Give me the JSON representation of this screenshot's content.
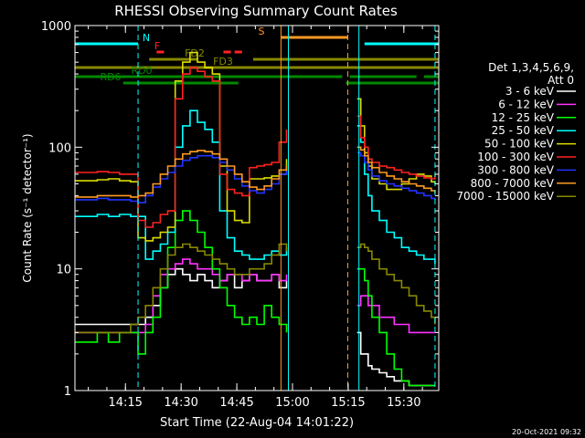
{
  "chart_data": {
    "type": "line",
    "title": "RHESSI Observing Summary Count Rates",
    "xlabel": "Start Time (22-Aug-04 14:01:22)",
    "ylabel": "Count Rate (s⁻¹ detector⁻¹)",
    "yscale": "log",
    "ylim": [
      1,
      1000
    ],
    "xlim_minutes": [
      0,
      98
    ],
    "x_unit": "minutes after 14:01:22",
    "x_ticks": [
      {
        "label": "14:15",
        "value": 13.6
      },
      {
        "label": "14:30",
        "value": 28.6
      },
      {
        "label": "14:45",
        "value": 43.6
      },
      {
        "label": "15:00",
        "value": 58.6
      },
      {
        "label": "15:15",
        "value": 73.6
      },
      {
        "label": "15:30",
        "value": 88.6
      }
    ],
    "y_ticks": [
      {
        "label": "1",
        "value": 1
      },
      {
        "label": "10",
        "value": 10
      },
      {
        "label": "100",
        "value": 100
      },
      {
        "label": "1000",
        "value": 1000
      }
    ],
    "legend": {
      "placement": "right",
      "header": [
        "Det 1,3,4,5,6,9,",
        "Att 0"
      ],
      "entries": [
        {
          "label": "3 - 6 keV",
          "color": "#ffffff"
        },
        {
          "label": "6 - 12 keV",
          "color": "#ff33ff"
        },
        {
          "label": "12 - 25 keV",
          "color": "#00ff00"
        },
        {
          "label": "25 - 50 keV",
          "color": "#00ffff"
        },
        {
          "label": "50 - 100 keV",
          "color": "#dddd00"
        },
        {
          "label": "100 - 300 keV",
          "color": "#ff2222"
        },
        {
          "label": "300 - 800 keV",
          "color": "#2233ff"
        },
        {
          "label": "800 - 7000 keV",
          "color": "#ff9922"
        },
        {
          "label": "7000 - 15000 keV",
          "color": "#888800"
        }
      ]
    },
    "flag_bars": [
      {
        "label": "N",
        "color": "#00ffff",
        "segments": [
          [
            0,
            17
          ],
          [
            78,
            98
          ]
        ]
      },
      {
        "label": "F",
        "color": "#ff2222",
        "segments": [
          [
            22,
            24
          ],
          [
            40,
            42
          ],
          [
            43,
            45
          ]
        ]
      },
      {
        "label": "S",
        "color": "#ff9922",
        "segments": [
          [
            55.5,
            73.5
          ]
        ]
      },
      {
        "label": "FD2",
        "color": "#888800",
        "segments": [
          [
            20,
            33
          ],
          [
            48,
            98
          ]
        ]
      },
      {
        "label": "FD3",
        "color": "#888800",
        "segments": [
          [
            0,
            98
          ]
        ]
      },
      {
        "label": "RD0",
        "color": "#008800",
        "segments": [
          [
            0,
            72
          ],
          [
            74,
            92
          ],
          [
            94,
            98
          ]
        ]
      },
      {
        "label": "RD6",
        "color": "#008800",
        "segments": [
          [
            13,
            44
          ],
          [
            73,
            98
          ]
        ]
      }
    ],
    "vertical_lines": [
      {
        "x": 17,
        "color": "#00ffff",
        "dash": true
      },
      {
        "x": 55.5,
        "color": "#ff9922",
        "dash": false
      },
      {
        "x": 57.5,
        "color": "#00ffff",
        "dash": false
      },
      {
        "x": 73.5,
        "color": "#ff9922",
        "dash": true
      },
      {
        "x": 76.5,
        "color": "#00ffff",
        "dash": false
      },
      {
        "x": 97,
        "color": "#00ffff",
        "dash": true
      }
    ],
    "data_gap": [
      58,
      76
    ],
    "series": [
      {
        "name": "3 - 6 keV",
        "color": "#ffffff",
        "x": [
          0,
          3,
          6,
          9,
          12,
          15,
          17,
          19,
          21,
          23,
          25,
          27,
          29,
          31,
          33,
          35,
          37,
          39,
          41,
          43,
          45,
          47,
          49,
          51,
          53,
          55,
          57,
          76,
          77,
          78,
          79,
          80,
          82,
          84,
          86,
          88,
          90,
          92,
          94,
          96,
          97
        ],
        "y": [
          3.5,
          3.5,
          3.5,
          3.5,
          3.5,
          3.5,
          3.5,
          4,
          5,
          7,
          9,
          10,
          9,
          8,
          9,
          8,
          7,
          8,
          9,
          7,
          8,
          9,
          8,
          8,
          9,
          7,
          8,
          3,
          2,
          2,
          1.6,
          1.5,
          1.4,
          1.3,
          1.2,
          1.2,
          1.1,
          1.1,
          1.1,
          1.1,
          1.1
        ]
      },
      {
        "name": "6 - 12 keV",
        "color": "#ff33ff",
        "x": [
          0,
          3,
          6,
          9,
          12,
          15,
          17,
          19,
          21,
          23,
          25,
          27,
          29,
          31,
          33,
          35,
          37,
          39,
          41,
          43,
          45,
          47,
          49,
          51,
          53,
          55,
          57,
          76,
          77,
          78,
          79,
          80,
          82,
          84,
          86,
          88,
          90,
          92,
          94,
          96,
          97
        ],
        "y": [
          3,
          3,
          3,
          3,
          3,
          3,
          3,
          3.5,
          6,
          9,
          10,
          11,
          12,
          11,
          10,
          10,
          9,
          8,
          9,
          9,
          8,
          9,
          8,
          8,
          9,
          8,
          9,
          5,
          6,
          6,
          5,
          5,
          4,
          4,
          3.5,
          3.5,
          3,
          3,
          3,
          3,
          3
        ]
      },
      {
        "name": "12 - 25 keV",
        "color": "#00ff00",
        "x": [
          0,
          3,
          6,
          9,
          12,
          15,
          17,
          19,
          21,
          23,
          25,
          27,
          29,
          31,
          33,
          35,
          37,
          39,
          41,
          43,
          45,
          47,
          49,
          51,
          53,
          55,
          57,
          76,
          77,
          78,
          79,
          80,
          82,
          84,
          86,
          88,
          90,
          92,
          94,
          96,
          97
        ],
        "y": [
          2.5,
          2.5,
          3,
          2.5,
          3,
          3,
          2,
          3,
          4,
          7,
          15,
          25,
          30,
          25,
          20,
          15,
          10,
          7,
          5,
          4,
          3.5,
          4,
          3.5,
          5,
          4,
          3.5,
          3,
          10,
          10,
          8,
          6,
          4,
          3,
          2,
          1.5,
          1.2,
          1.1,
          1.1,
          1.1,
          1.1,
          1.1
        ]
      },
      {
        "name": "25 - 50 keV",
        "color": "#00ffff",
        "x": [
          0,
          3,
          6,
          9,
          12,
          15,
          17,
          19,
          21,
          23,
          25,
          27,
          29,
          31,
          33,
          35,
          37,
          39,
          41,
          43,
          45,
          47,
          49,
          51,
          53,
          55,
          57,
          76,
          77,
          78,
          79,
          80,
          82,
          84,
          86,
          88,
          90,
          92,
          94,
          96,
          97
        ],
        "y": [
          27,
          27,
          28,
          27,
          28,
          27,
          27,
          12,
          14,
          16,
          20,
          100,
          150,
          200,
          160,
          140,
          110,
          30,
          18,
          14,
          13,
          12,
          12,
          13,
          14,
          13,
          15,
          150,
          110,
          60,
          40,
          30,
          25,
          20,
          18,
          15,
          14,
          13,
          12,
          12,
          11
        ]
      },
      {
        "name": "50 - 100 keV",
        "color": "#dddd00",
        "x": [
          0,
          3,
          6,
          9,
          12,
          15,
          17,
          19,
          21,
          23,
          25,
          27,
          29,
          31,
          33,
          35,
          37,
          39,
          41,
          43,
          45,
          47,
          49,
          51,
          53,
          55,
          57,
          76,
          77,
          78,
          79,
          80,
          82,
          84,
          86,
          88,
          90,
          92,
          94,
          96,
          97
        ],
        "y": [
          53,
          53,
          54,
          55,
          53,
          52,
          18,
          17,
          18,
          20,
          22,
          350,
          500,
          600,
          500,
          450,
          400,
          70,
          30,
          25,
          24,
          55,
          55,
          56,
          58,
          60,
          80,
          250,
          150,
          90,
          70,
          55,
          50,
          45,
          45,
          50,
          55,
          60,
          58,
          52,
          50
        ]
      },
      {
        "name": "100 - 300 keV",
        "color": "#ff2222",
        "x": [
          0,
          3,
          6,
          9,
          12,
          15,
          17,
          19,
          21,
          23,
          25,
          27,
          29,
          31,
          33,
          35,
          37,
          39,
          41,
          43,
          45,
          47,
          49,
          51,
          53,
          55,
          57,
          76,
          77,
          78,
          79,
          80,
          82,
          84,
          86,
          88,
          90,
          92,
          94,
          96,
          97
        ],
        "y": [
          62,
          62,
          63,
          62,
          60,
          60,
          25,
          22,
          24,
          28,
          30,
          250,
          400,
          450,
          420,
          380,
          350,
          60,
          45,
          42,
          40,
          68,
          70,
          72,
          75,
          110,
          140,
          180,
          120,
          100,
          80,
          75,
          70,
          68,
          65,
          62,
          60,
          58,
          56,
          55,
          60
        ]
      },
      {
        "name": "300 - 800 keV",
        "color": "#2233ff",
        "x": [
          0,
          3,
          6,
          9,
          12,
          15,
          17,
          19,
          21,
          23,
          25,
          27,
          29,
          31,
          33,
          35,
          37,
          39,
          41,
          43,
          45,
          47,
          49,
          51,
          53,
          55,
          57,
          76,
          77,
          78,
          79,
          80,
          82,
          84,
          86,
          88,
          90,
          92,
          94,
          96,
          97
        ],
        "y": [
          37,
          37,
          38,
          37,
          37,
          36,
          35,
          40,
          47,
          55,
          62,
          70,
          78,
          82,
          85,
          85,
          82,
          75,
          65,
          55,
          48,
          44,
          42,
          45,
          50,
          60,
          65,
          90,
          85,
          75,
          65,
          58,
          53,
          50,
          48,
          46,
          44,
          42,
          40,
          38,
          37
        ]
      },
      {
        "name": "800 - 7000 keV",
        "color": "#ff9922",
        "x": [
          0,
          3,
          6,
          9,
          12,
          15,
          17,
          19,
          21,
          23,
          25,
          27,
          29,
          31,
          33,
          35,
          37,
          39,
          41,
          43,
          45,
          47,
          49,
          51,
          53,
          55,
          57,
          76,
          77,
          78,
          79,
          80,
          82,
          84,
          86,
          88,
          90,
          92,
          94,
          96,
          97
        ],
        "y": [
          39,
          39,
          40,
          40,
          40,
          39,
          40,
          42,
          50,
          60,
          70,
          80,
          88,
          92,
          94,
          92,
          88,
          80,
          70,
          60,
          52,
          47,
          45,
          48,
          55,
          65,
          70,
          100,
          95,
          85,
          75,
          68,
          62,
          58,
          55,
          52,
          50,
          48,
          46,
          44,
          42
        ]
      },
      {
        "name": "7000 - 15000 keV",
        "color": "#888800",
        "x": [
          0,
          3,
          6,
          9,
          12,
          15,
          17,
          19,
          21,
          23,
          25,
          27,
          29,
          31,
          33,
          35,
          37,
          39,
          41,
          43,
          45,
          47,
          49,
          51,
          53,
          55,
          57,
          76,
          77,
          78,
          79,
          80,
          82,
          84,
          86,
          88,
          90,
          92,
          94,
          96,
          97
        ],
        "y": [
          3,
          3,
          3,
          3,
          3,
          3.5,
          4,
          5,
          7,
          10,
          13,
          15,
          16,
          15,
          14,
          13,
          12,
          11,
          10,
          9,
          9,
          10,
          10,
          11,
          13,
          16,
          14,
          15,
          16,
          15,
          14,
          12,
          10,
          9,
          8,
          7,
          6,
          5,
          4.5,
          4,
          3.5
        ]
      }
    ]
  },
  "timestamp": "20-Oct-2021 09:32"
}
